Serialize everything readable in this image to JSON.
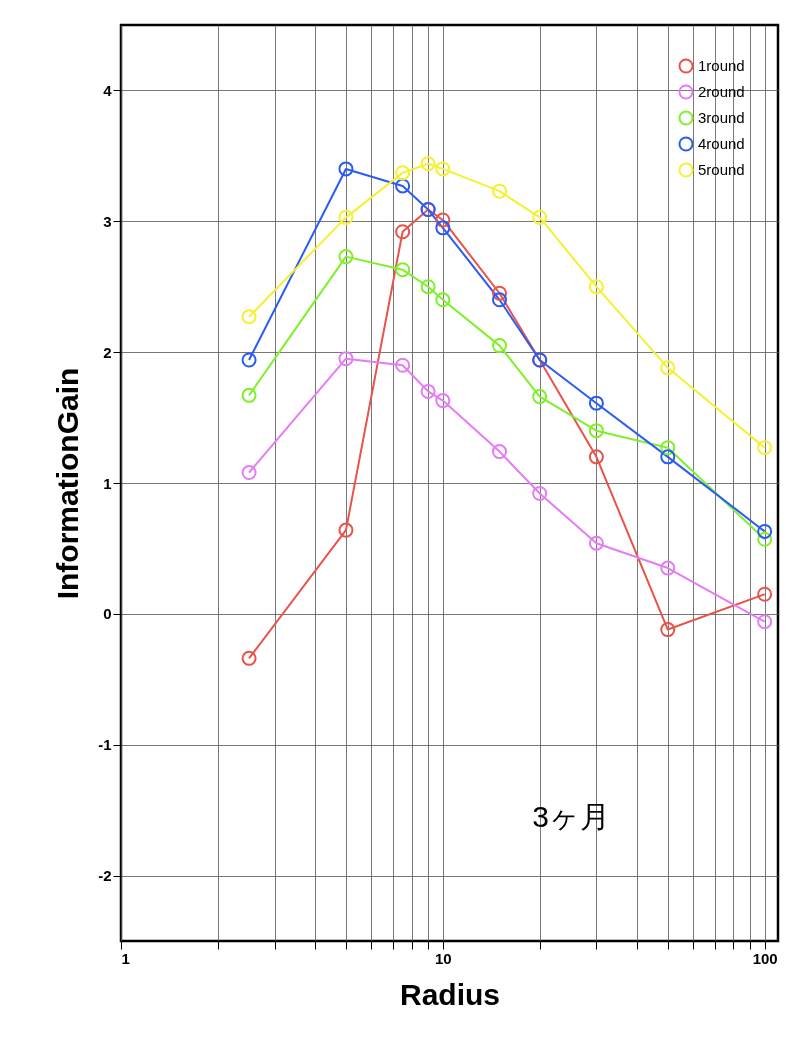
{
  "chart_data": {
    "type": "line",
    "xlabel": "Radius",
    "ylabel": "InformationGain",
    "log": "x",
    "grid": true,
    "legend": "top right",
    "marker": "circle",
    "line_style": "solid",
    "x": [
      2.5,
      5,
      7.5,
      9,
      10,
      15,
      20,
      30,
      50,
      100
    ],
    "xlim": [
      1,
      110
    ],
    "xticks": [
      1,
      {
        "value": 2,
        "label": null
      },
      {
        "value": 3,
        "label": null
      },
      {
        "value": 4,
        "label": null
      },
      {
        "value": 5,
        "label": null
      },
      {
        "value": 6,
        "label": null
      },
      {
        "value": 7,
        "label": null
      },
      {
        "value": 8,
        "label": null
      },
      {
        "value": 9,
        "label": null
      },
      10,
      {
        "value": 20,
        "label": null
      },
      {
        "value": 30,
        "label": null
      },
      {
        "value": 40,
        "label": null
      },
      {
        "value": 50,
        "label": null
      },
      {
        "value": 60,
        "label": null
      },
      {
        "value": 70,
        "label": null
      },
      {
        "value": 80,
        "label": null
      },
      {
        "value": 90,
        "label": null
      },
      100
    ],
    "ylim": [
      -2.5,
      4.5
    ],
    "yticks": [
      -2,
      -1,
      0,
      1,
      2,
      3,
      4
    ],
    "series": [
      {
        "name": "1round",
        "color": "#e8534a",
        "values": [
          -0.34,
          0.64,
          2.92,
          3.09,
          3.01,
          2.45,
          1.94,
          1.2,
          -0.12,
          0.15
        ]
      },
      {
        "name": "2round",
        "color": "#e57cf5",
        "values": [
          1.08,
          1.95,
          1.9,
          1.7,
          1.63,
          1.24,
          0.92,
          0.54,
          0.35,
          -0.06
        ]
      },
      {
        "name": "3round",
        "color": "#80f02a",
        "values": [
          1.67,
          2.73,
          2.63,
          2.5,
          2.4,
          2.05,
          1.66,
          1.4,
          1.27,
          0.57
        ]
      },
      {
        "name": "4round",
        "color": "#2a5cf5",
        "values": [
          1.94,
          3.4,
          3.27,
          3.09,
          2.95,
          2.4,
          1.94,
          1.61,
          1.2,
          0.63
        ]
      },
      {
        "name": "5round",
        "color": "#f5f030",
        "values": [
          2.27,
          3.03,
          3.37,
          3.44,
          3.4,
          3.23,
          3.03,
          2.5,
          1.88,
          1.27
        ]
      }
    ],
    "annotations": [
      "3ヶ月"
    ]
  }
}
